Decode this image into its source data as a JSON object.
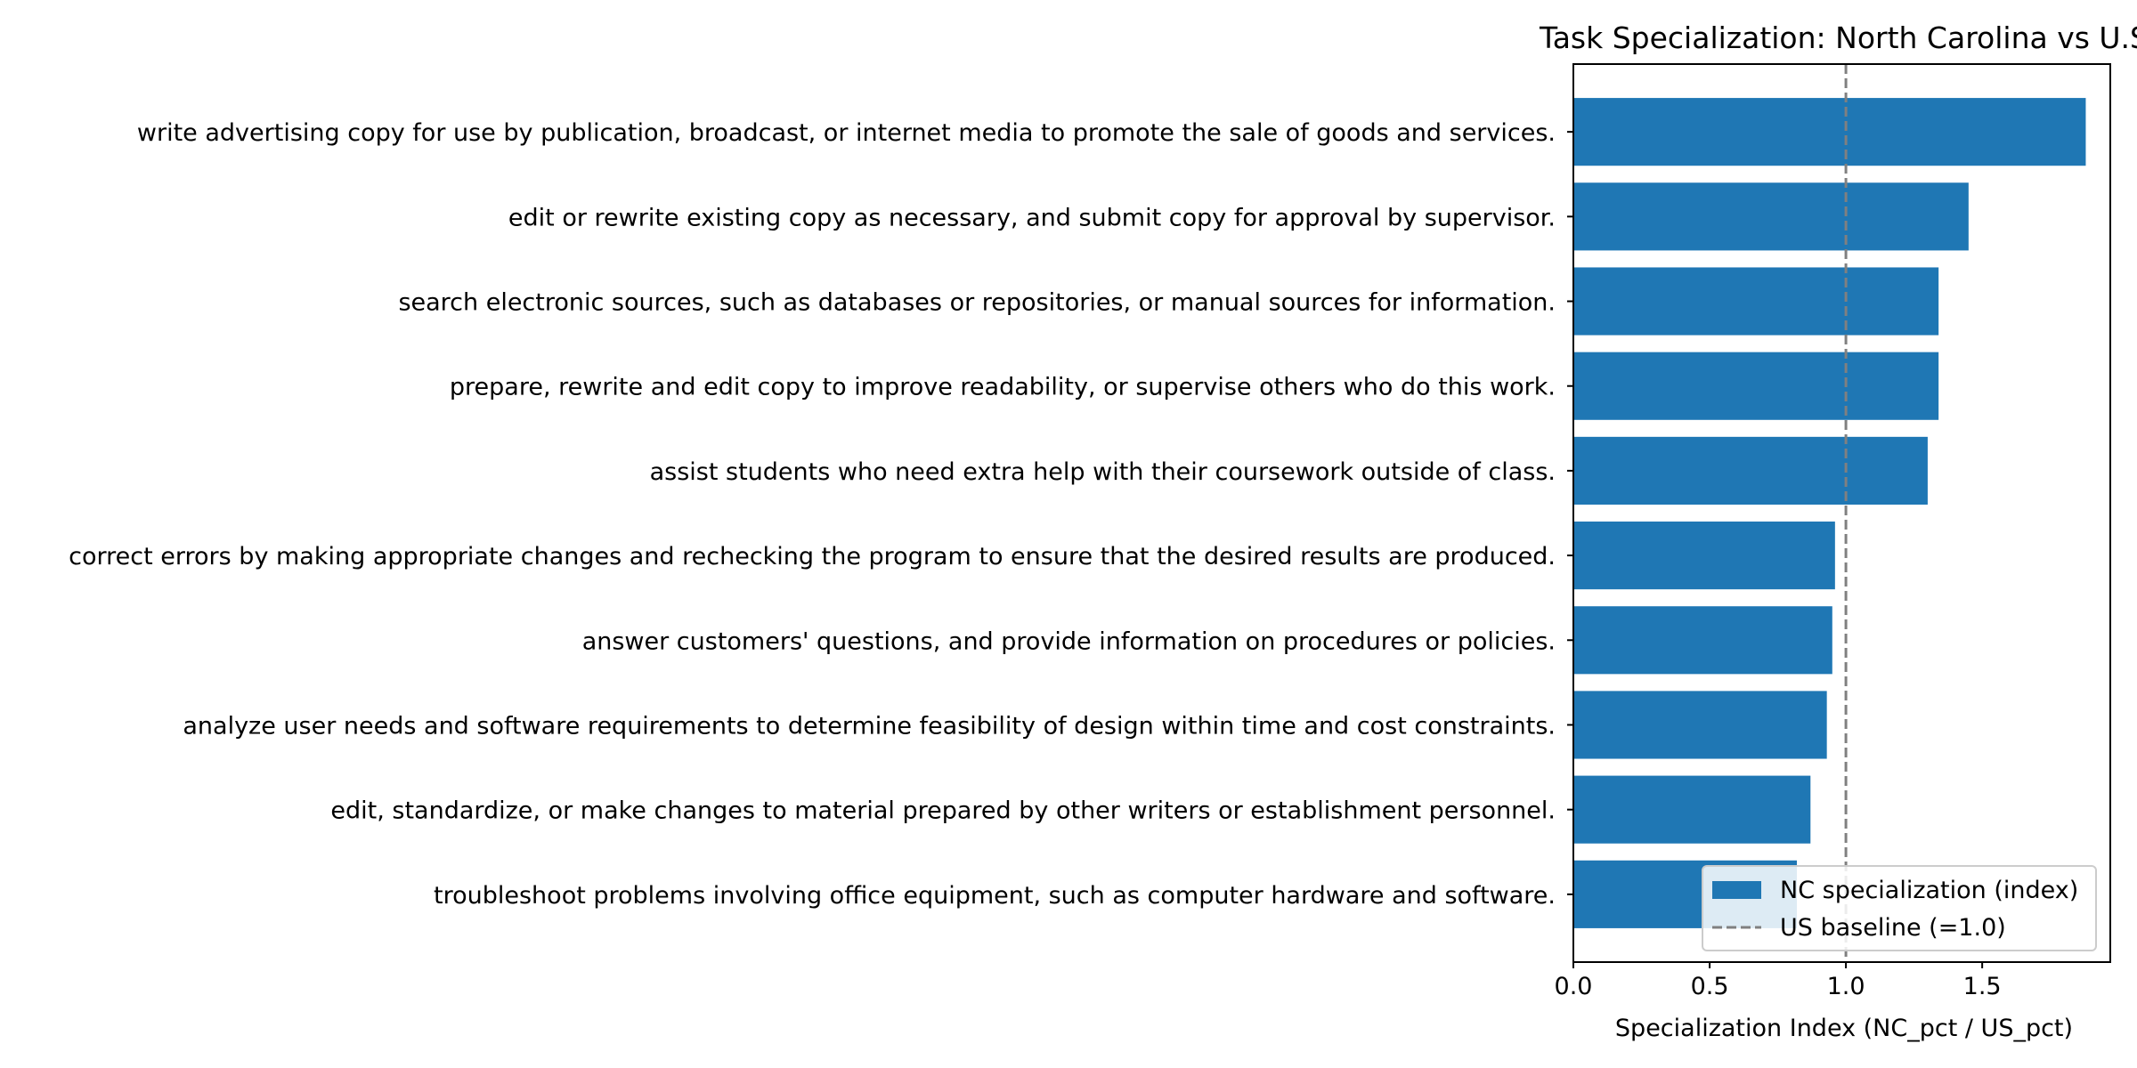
{
  "chart_data": {
    "type": "bar",
    "orientation": "horizontal",
    "title": "Task Specialization: North Carolina vs U.S",
    "xlabel": "Specialization Index (NC_pct / US_pct)",
    "ylabel": "",
    "xlim": [
      0,
      1.97
    ],
    "xticks": [
      0.0,
      0.5,
      1.0,
      1.5
    ],
    "xtick_labels": [
      "0.0",
      "0.5",
      "1.0",
      "1.5"
    ],
    "grid": false,
    "legend_position": "lower-right",
    "colors": {
      "bar": "#1f77b4",
      "baseline": "#808080",
      "axis": "#000000"
    },
    "series": [
      {
        "name": "NC specialization (index)",
        "categories": [
          "write advertising copy for use by publication, broadcast, or internet media to promote the sale of goods and services.",
          "edit or rewrite existing copy as necessary, and submit copy for approval by supervisor.",
          "search electronic sources, such as databases or repositories, or manual sources for information.",
          "prepare, rewrite and edit copy to improve readability, or supervise others who do this work.",
          "assist students who need extra help with their coursework outside of class.",
          "correct errors by making appropriate changes and rechecking the program to ensure that the desired results are produced.",
          "answer customers' questions, and provide information on procedures or policies.",
          "analyze user needs and software requirements to determine feasibility of design within time and cost constraints.",
          "edit, standardize, or make changes to material prepared by other writers or establishment personnel.",
          "troubleshoot problems involving office equipment, such as computer hardware and software."
        ],
        "values": [
          1.88,
          1.45,
          1.34,
          1.34,
          1.3,
          0.96,
          0.95,
          0.93,
          0.87,
          0.82
        ]
      }
    ],
    "reference_line": {
      "name": "US baseline (=1.0)",
      "x": 1.0,
      "style": "dashed"
    }
  }
}
